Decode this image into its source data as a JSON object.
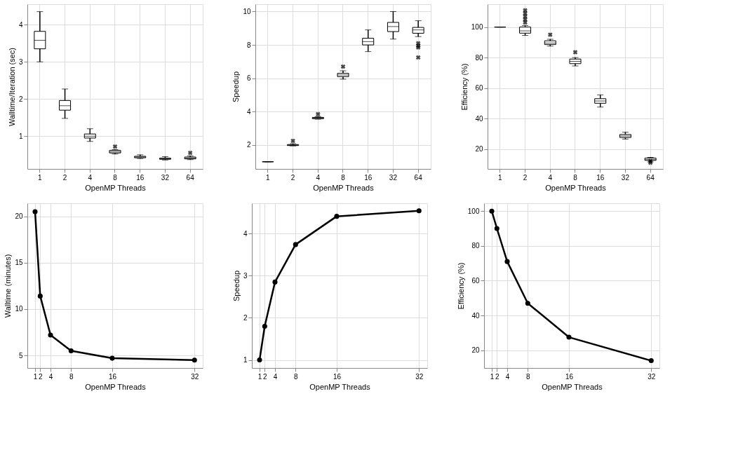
{
  "chart_data": [
    {
      "type": "box",
      "categories": [
        "1",
        "2",
        "4",
        "8",
        "16",
        "32",
        "64"
      ],
      "xlabel": "OpenMP Threads",
      "ylabel": "Walltime/Iteration (sec)",
      "ylim": [
        0.12,
        4.55
      ],
      "yticks": [
        1,
        2,
        3,
        4
      ],
      "grid": true,
      "boxes": [
        {
          "low": 3.0,
          "q1": 3.35,
          "median": 3.58,
          "q3": 3.82,
          "high": 4.35
        },
        {
          "low": 1.48,
          "q1": 1.7,
          "median": 1.82,
          "q3": 1.96,
          "high": 2.27
        },
        {
          "low": 0.86,
          "q1": 0.95,
          "median": 1.0,
          "q3": 1.06,
          "high": 1.2
        },
        {
          "low": 0.52,
          "q1": 0.55,
          "median": 0.58,
          "q3": 0.62,
          "high": 0.64,
          "outliers": [
            0.72
          ]
        },
        {
          "low": 0.4,
          "q1": 0.42,
          "median": 0.44,
          "q3": 0.46,
          "high": 0.5
        },
        {
          "low": 0.36,
          "q1": 0.38,
          "median": 0.39,
          "q3": 0.41,
          "high": 0.45
        },
        {
          "low": 0.37,
          "q1": 0.39,
          "median": 0.41,
          "q3": 0.44,
          "high": 0.47,
          "outliers": [
            0.55
          ]
        }
      ]
    },
    {
      "type": "box",
      "categories": [
        "1",
        "2",
        "4",
        "8",
        "16",
        "32",
        "64"
      ],
      "xlabel": "OpenMP Threads",
      "ylabel": "Speedup",
      "ylim": [
        0.57,
        10.44
      ],
      "yticks": [
        2,
        4,
        6,
        8,
        10
      ],
      "grid": true,
      "boxes": [
        {
          "low": 1.0,
          "q1": 1.0,
          "median": 1.0,
          "q3": 1.0,
          "high": 1.0
        },
        {
          "low": 1.95,
          "q1": 1.97,
          "median": 2.0,
          "q3": 2.03,
          "high": 2.08,
          "outliers": [
            2.25
          ]
        },
        {
          "low": 3.55,
          "q1": 3.58,
          "median": 3.62,
          "q3": 3.66,
          "high": 3.7,
          "outliers": [
            3.85
          ]
        },
        {
          "low": 5.95,
          "q1": 6.1,
          "median": 6.2,
          "q3": 6.3,
          "high": 6.45,
          "outliers": [
            6.7
          ]
        },
        {
          "low": 7.6,
          "q1": 8.0,
          "median": 8.2,
          "q3": 8.4,
          "high": 8.9
        },
        {
          "low": 8.35,
          "q1": 8.8,
          "median": 9.1,
          "q3": 9.35,
          "high": 10.0
        },
        {
          "low": 8.5,
          "q1": 8.7,
          "median": 8.9,
          "q3": 9.05,
          "high": 9.45,
          "outliers": [
            8.1,
            7.95,
            7.85,
            7.25
          ]
        }
      ]
    },
    {
      "type": "box",
      "categories": [
        "1",
        "2",
        "4",
        "8",
        "16",
        "32",
        "64"
      ],
      "xlabel": "OpenMP Threads",
      "ylabel": "Efficiency (%)",
      "ylim": [
        6.9,
        115
      ],
      "yticks": [
        20,
        40,
        60,
        80,
        100
      ],
      "grid": true,
      "boxes": [
        {
          "low": 100,
          "q1": 100,
          "median": 100,
          "q3": 100,
          "high": 100
        },
        {
          "low": 94.5,
          "q1": 96,
          "median": 97.5,
          "q3": 100,
          "high": 101,
          "outliers": [
            103,
            105,
            107,
            109,
            111
          ]
        },
        {
          "low": 87.5,
          "q1": 88.5,
          "median": 89.5,
          "q3": 91,
          "high": 92,
          "outliers": [
            95
          ]
        },
        {
          "low": 74.5,
          "q1": 76,
          "median": 77.5,
          "q3": 79,
          "high": 80,
          "outliers": [
            83.5
          ]
        },
        {
          "low": 47.5,
          "q1": 50,
          "median": 51.5,
          "q3": 53,
          "high": 55.5
        },
        {
          "low": 26.5,
          "q1": 27.5,
          "median": 28.5,
          "q3": 29.5,
          "high": 31
        },
        {
          "low": 11.5,
          "q1": 12.5,
          "median": 13,
          "q3": 14,
          "high": 14.5,
          "outliers": [
            11,
            12
          ]
        }
      ]
    },
    {
      "type": "line",
      "x": [
        1,
        2,
        4,
        8,
        16,
        32
      ],
      "xlabel": "OpenMP Threads",
      "ylabel": "Walltime (minutes)",
      "xlim": [
        -0.5,
        33.6
      ],
      "xticks": [
        1,
        2,
        4,
        8,
        16,
        32
      ],
      "ylim": [
        3.65,
        21.4
      ],
      "yticks": [
        5,
        10,
        15,
        20
      ],
      "grid": true,
      "marker": "circle",
      "series": [
        {
          "color": "#000000",
          "values": [
            20.5,
            11.4,
            7.2,
            5.5,
            4.7,
            4.5
          ]
        }
      ]
    },
    {
      "type": "line",
      "x": [
        1,
        2,
        4,
        8,
        16,
        32
      ],
      "xlabel": "OpenMP Threads",
      "ylabel": "Speedup",
      "xlim": [
        -0.5,
        33.6
      ],
      "xticks": [
        1,
        2,
        4,
        8,
        16,
        32
      ],
      "ylim": [
        0.81,
        4.72
      ],
      "yticks": [
        1,
        2,
        3,
        4
      ],
      "grid": true,
      "marker": "circle",
      "series": [
        {
          "color": "#000000",
          "values": [
            1.0,
            1.8,
            2.85,
            3.74,
            4.41,
            4.54
          ]
        }
      ]
    },
    {
      "type": "line",
      "x": [
        1,
        2,
        4,
        8,
        16,
        32
      ],
      "xlabel": "OpenMP Threads",
      "ylabel": "Efficiency (%)",
      "xlim": [
        -0.5,
        33.6
      ],
      "xticks": [
        1,
        2,
        4,
        8,
        16,
        32
      ],
      "ylim": [
        9.8,
        104.5
      ],
      "yticks": [
        20,
        40,
        60,
        80,
        100
      ],
      "grid": true,
      "marker": "circle",
      "series": [
        {
          "color": "#000000",
          "values": [
            100,
            90,
            71,
            47,
            27.5,
            14
          ]
        }
      ]
    }
  ]
}
